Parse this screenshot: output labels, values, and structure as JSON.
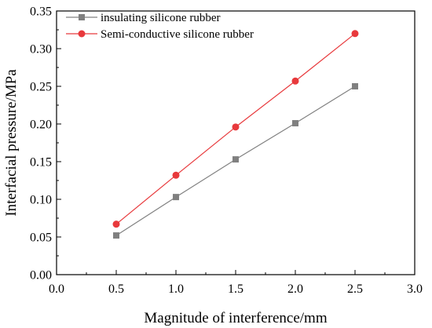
{
  "chart_data": {
    "type": "line",
    "title": "",
    "xlabel": "Magnitude of interference/mm",
    "ylabel": "Interfacial pressure/MPa",
    "xlim": [
      0.0,
      3.0
    ],
    "ylim": [
      0.0,
      0.35
    ],
    "xticks": [
      "0.0",
      "0.5",
      "1.0",
      "1.5",
      "2.0",
      "2.5",
      "3.0"
    ],
    "yticks": [
      "0.00",
      "0.05",
      "0.10",
      "0.15",
      "0.20",
      "0.25",
      "0.30",
      "0.35"
    ],
    "grid": false,
    "legend_position": "top-left",
    "x": [
      0.5,
      1.0,
      1.5,
      2.0,
      2.5
    ],
    "series": [
      {
        "name": "insulating silicone rubber",
        "values": [
          0.052,
          0.103,
          0.153,
          0.201,
          0.25
        ],
        "color": "#808080",
        "marker": "square"
      },
      {
        "name": "Semi-conductive silicone rubber",
        "values": [
          0.067,
          0.132,
          0.196,
          0.257,
          0.32
        ],
        "color": "#e8393c",
        "marker": "circle"
      }
    ]
  }
}
